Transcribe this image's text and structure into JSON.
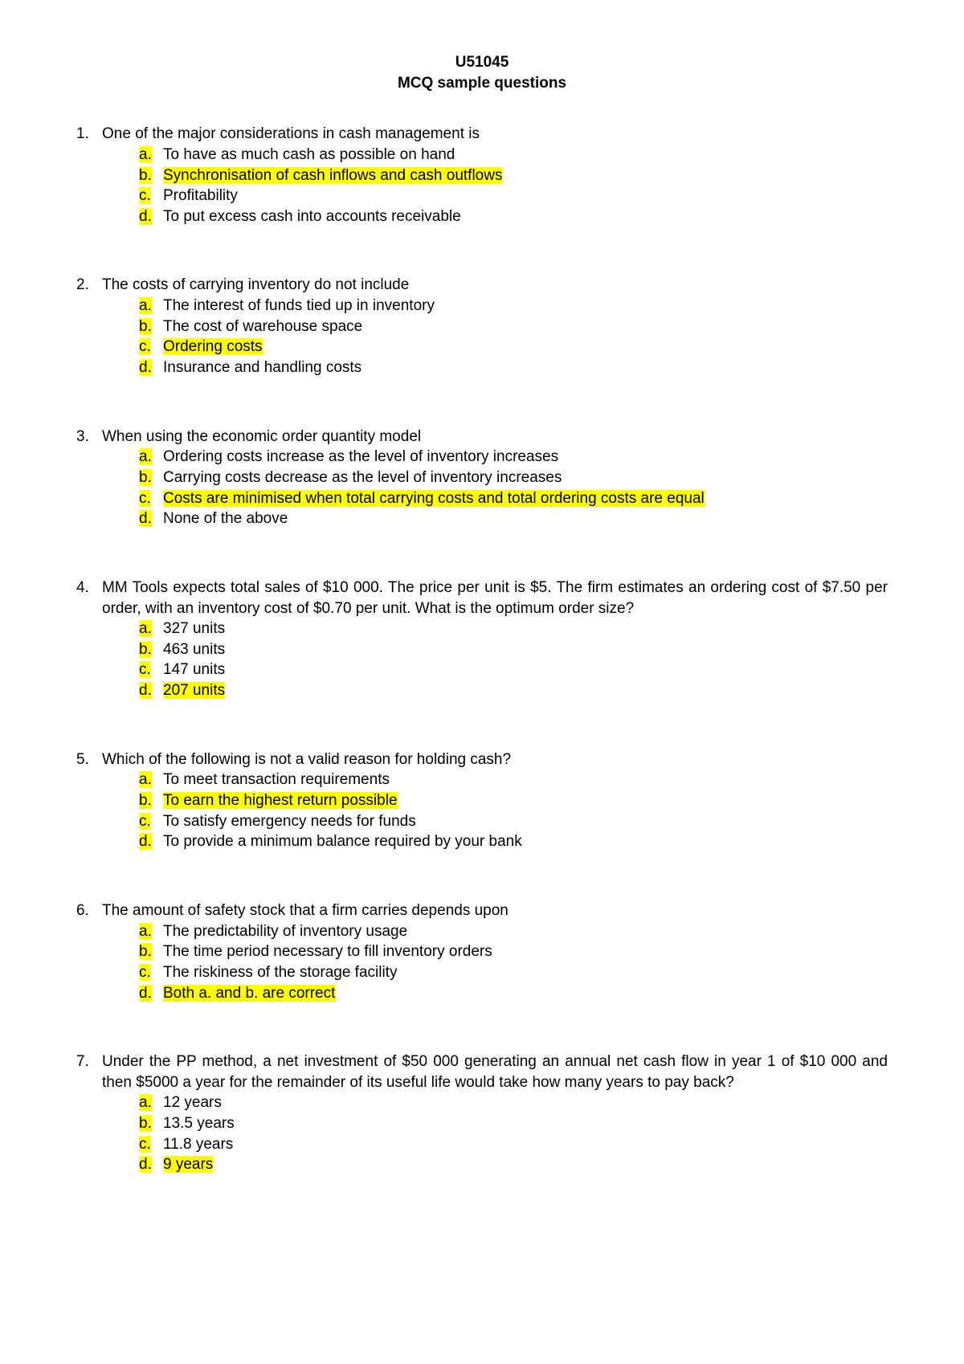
{
  "header": {
    "code": "U51045",
    "subtitle": "MCQ sample questions"
  },
  "highlight_color": "#ffff00",
  "text_color": "#000000",
  "background_color": "#ffffff",
  "font_size": 19,
  "questions": [
    {
      "num": "1.",
      "text": "One of the major considerations in cash management is",
      "justify": false,
      "options": [
        {
          "letter": "a.",
          "text": "To have as much cash as possible on hand",
          "letter_hl": true,
          "text_hl": false
        },
        {
          "letter": "b.",
          "text": "Synchronisation of cash inflows and cash outflows",
          "letter_hl": true,
          "text_hl": true
        },
        {
          "letter": "c.",
          "text": "Profitability",
          "letter_hl": true,
          "text_hl": false
        },
        {
          "letter": "d.",
          "text": "To put excess cash into accounts receivable",
          "letter_hl": true,
          "text_hl": false
        }
      ]
    },
    {
      "num": "2.",
      "text": "The costs of carrying inventory do not include",
      "justify": false,
      "options": [
        {
          "letter": "a.",
          "text": "The interest of funds tied up in inventory",
          "letter_hl": true,
          "text_hl": false
        },
        {
          "letter": "b.",
          "text": "The cost of warehouse space",
          "letter_hl": true,
          "text_hl": false
        },
        {
          "letter": "c.",
          "text": "Ordering costs",
          "letter_hl": true,
          "text_hl": true
        },
        {
          "letter": "d.",
          "text": "Insurance and handling costs",
          "letter_hl": true,
          "text_hl": false
        }
      ]
    },
    {
      "num": "3.",
      "text": "When using the economic order quantity model",
      "justify": false,
      "options": [
        {
          "letter": "a.",
          "text": "Ordering costs increase as the level of inventory increases",
          "letter_hl": true,
          "text_hl": false
        },
        {
          "letter": "b.",
          "text": "Carrying costs decrease as the level of inventory increases",
          "letter_hl": true,
          "text_hl": false
        },
        {
          "letter": "c.",
          "text": "Costs are minimised when total carrying costs and total ordering costs are equal",
          "letter_hl": true,
          "text_hl": true
        },
        {
          "letter": "d.",
          "text": "None of the above",
          "letter_hl": true,
          "text_hl": false
        }
      ]
    },
    {
      "num": "4.",
      "text": "MM Tools expects total sales of $10 000.  The price per unit is $5.  The firm estimates an ordering cost of $7.50 per order, with an inventory cost of $0.70 per unit.  What is the optimum order size?",
      "justify": true,
      "options": [
        {
          "letter": "a.",
          "text": "327 units",
          "letter_hl": true,
          "text_hl": false
        },
        {
          "letter": "b.",
          "text": "463 units",
          "letter_hl": true,
          "text_hl": false
        },
        {
          "letter": "c.",
          "text": "147 units",
          "letter_hl": true,
          "text_hl": false
        },
        {
          "letter": "d.",
          "text": "207 units",
          "letter_hl": true,
          "text_hl": true
        }
      ]
    },
    {
      "num": "5.",
      "text": "Which of the following is not a valid reason for holding cash?",
      "justify": false,
      "options": [
        {
          "letter": "a.",
          "text": "To meet transaction requirements",
          "letter_hl": true,
          "text_hl": false
        },
        {
          "letter": "b.",
          "text": "To earn the highest return possible",
          "letter_hl": true,
          "text_hl": true
        },
        {
          "letter": "c.",
          "text": "To satisfy emergency needs for funds",
          "letter_hl": true,
          "text_hl": false
        },
        {
          "letter": "d.",
          "text": "To provide a minimum balance required by your bank",
          "letter_hl": true,
          "text_hl": false
        }
      ]
    },
    {
      "num": "6.",
      "text": "The amount of safety stock that a firm carries depends upon",
      "justify": false,
      "options": [
        {
          "letter": "a.",
          "text": "The predictability of inventory usage",
          "letter_hl": true,
          "text_hl": false
        },
        {
          "letter": "b.",
          "text": "The time period necessary to fill inventory orders",
          "letter_hl": true,
          "text_hl": false
        },
        {
          "letter": "c.",
          "text": "The riskiness of the storage facility",
          "letter_hl": true,
          "text_hl": false
        },
        {
          "letter": "d.",
          "text": "Both a. and b. are correct",
          "letter_hl": true,
          "text_hl": true
        }
      ]
    },
    {
      "num": "7.",
      "text": "Under the PP method, a net investment of $50 000 generating an annual net cash flow in year 1 of $10 000 and then $5000 a year for the remainder of its useful life would take how many years to pay back?",
      "justify": true,
      "options": [
        {
          "letter": "a.",
          "text": "12 years",
          "letter_hl": true,
          "text_hl": false
        },
        {
          "letter": "b.",
          "text": "13.5 years",
          "letter_hl": true,
          "text_hl": false
        },
        {
          "letter": "c.",
          "text": "11.8 years",
          "letter_hl": true,
          "text_hl": false
        },
        {
          "letter": "d.",
          "text": "9 years",
          "letter_hl": true,
          "text_hl": true
        }
      ]
    }
  ]
}
